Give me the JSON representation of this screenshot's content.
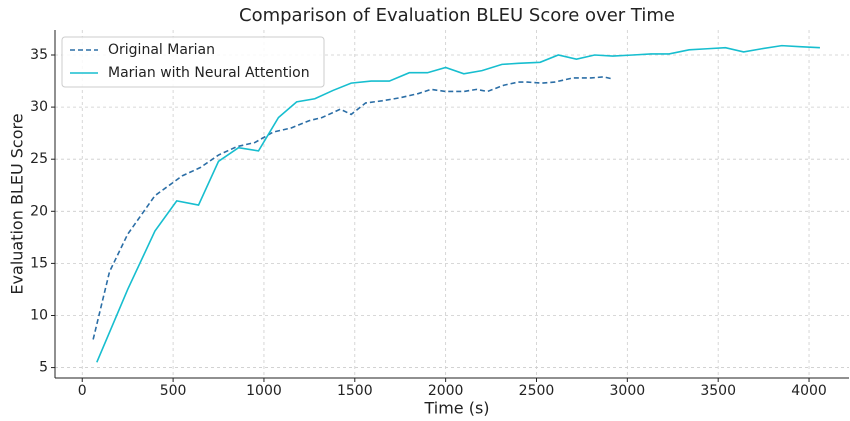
{
  "chart_data": {
    "type": "line",
    "title": "Comparison of Evaluation BLEU Score over Time",
    "xlabel": "Time (s)",
    "ylabel": "Evaluation BLEU Score",
    "xlim": [
      -150,
      4220
    ],
    "ylim": [
      4,
      37.4
    ],
    "xticks": [
      0,
      500,
      1000,
      1500,
      2000,
      2500,
      3000,
      3500,
      4000
    ],
    "yticks": [
      5,
      10,
      15,
      20,
      25,
      30,
      35
    ],
    "grid": true,
    "legend": "upper left",
    "series": [
      {
        "name": "Original Marian",
        "color": "#2b6ea6",
        "dash": true,
        "x": [
          60,
          150,
          250,
          400,
          550,
          650,
          750,
          850,
          950,
          1050,
          1150,
          1250,
          1320,
          1420,
          1480,
          1560,
          1650,
          1750,
          1850,
          1920,
          2000,
          2100,
          2170,
          2230,
          2320,
          2400,
          2450,
          2530,
          2600,
          2700,
          2800,
          2870,
          2920
        ],
        "values": [
          7.7,
          14.2,
          17.8,
          21.5,
          23.4,
          24.2,
          25.4,
          26.2,
          26.6,
          27.6,
          28.0,
          28.7,
          29.0,
          29.8,
          29.3,
          30.4,
          30.6,
          30.9,
          31.3,
          31.7,
          31.5,
          31.5,
          31.7,
          31.5,
          32.1,
          32.4,
          32.4,
          32.3,
          32.4,
          32.8,
          32.8,
          32.9,
          32.7
        ]
      },
      {
        "name": "Marian with Neural Attention",
        "color": "#17becf",
        "dash": false,
        "x": [
          80,
          250,
          400,
          520,
          640,
          750,
          860,
          970,
          1080,
          1180,
          1280,
          1380,
          1480,
          1590,
          1690,
          1800,
          1900,
          2000,
          2100,
          2200,
          2310,
          2400,
          2520,
          2620,
          2720,
          2820,
          2920,
          3030,
          3130,
          3230,
          3340,
          3440,
          3540,
          3640,
          3740,
          3850,
          3950,
          4060
        ],
        "values": [
          5.5,
          12.5,
          18.1,
          21.0,
          20.6,
          24.8,
          26.1,
          25.8,
          29.0,
          30.5,
          30.8,
          31.6,
          32.3,
          32.5,
          32.5,
          33.3,
          33.3,
          33.8,
          33.2,
          33.5,
          34.1,
          34.2,
          34.3,
          35.0,
          34.6,
          35.0,
          34.9,
          35.0,
          35.1,
          35.1,
          35.5,
          35.6,
          35.7,
          35.3,
          35.6,
          35.9,
          35.8,
          35.7
        ]
      }
    ]
  }
}
